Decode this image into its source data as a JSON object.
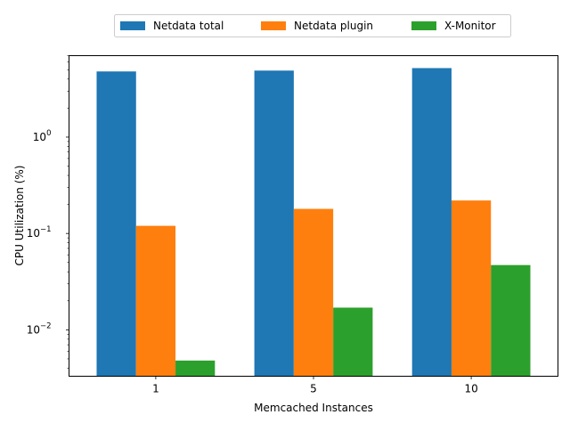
{
  "chart_data": {
    "type": "bar",
    "title": "",
    "xlabel": "Memcached Instances",
    "ylabel": "CPU Utilization (%)",
    "y_scale": "log",
    "ylim": [
      0.0033,
      7.0
    ],
    "y_ticks": [
      {
        "value": 0.01,
        "base": "10",
        "exp": "−2"
      },
      {
        "value": 0.1,
        "base": "10",
        "exp": "−1"
      },
      {
        "value": 1,
        "base": "10",
        "exp": "0"
      }
    ],
    "categories": [
      "1",
      "5",
      "10"
    ],
    "series": [
      {
        "name": "Netdata total",
        "color": "#1f77b4",
        "values": [
          4.8,
          4.9,
          5.2
        ]
      },
      {
        "name": "Netdata plugin",
        "color": "#ff7f0e",
        "values": [
          0.12,
          0.18,
          0.22
        ]
      },
      {
        "name": "X-Monitor",
        "color": "#2ca02c",
        "values": [
          0.0048,
          0.017,
          0.047
        ]
      }
    ],
    "legend": "top-center",
    "grid": false
  }
}
